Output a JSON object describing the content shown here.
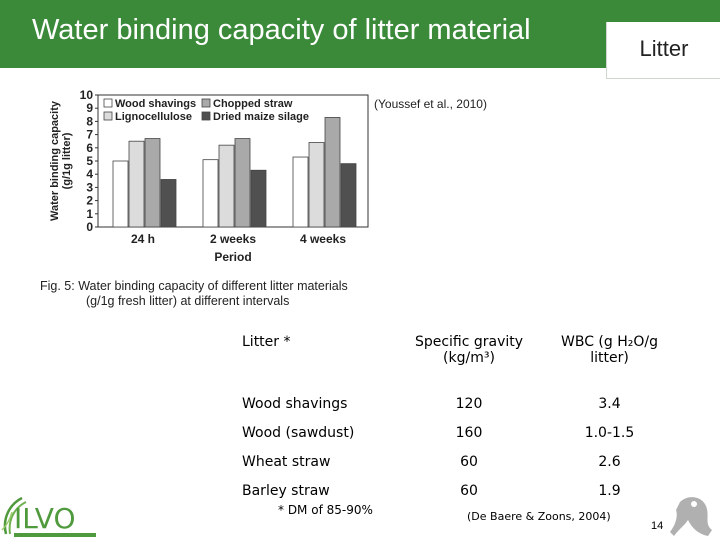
{
  "header": {
    "title": "Water binding capacity of litter material",
    "tag": "Litter"
  },
  "source_note": "(Youssef et al., 2010)",
  "figure_caption": {
    "line1": "Fig. 5: Water binding capacity of different litter materials",
    "line2": "(g/1g fresh litter) at different intervals"
  },
  "chart_data": {
    "type": "bar",
    "categories": [
      "24 h",
      "2 weeks",
      "4 weeks"
    ],
    "series": [
      {
        "name": "Wood shavings",
        "values": [
          5.0,
          5.1,
          5.3
        ]
      },
      {
        "name": "Lignocellulose",
        "values": [
          6.5,
          6.2,
          6.4
        ]
      },
      {
        "name": "Chopped straw",
        "values": [
          6.7,
          6.7,
          8.3
        ]
      },
      {
        "name": "Dried maize silage",
        "values": [
          3.6,
          4.3,
          4.8
        ]
      }
    ],
    "ylabel": "Water binding capacity (g/1g litter)",
    "xlabel": "Period",
    "ylim": [
      0,
      10
    ],
    "yticks": [
      "0",
      "1",
      "2",
      "3",
      "4",
      "5",
      "6",
      "7",
      "8",
      "9",
      "10"
    ],
    "legend": "top",
    "colors": [
      "#ffffff",
      "#dcdcdc",
      "#a9a9a9",
      "#505050"
    ]
  },
  "table": {
    "headers": [
      "Litter *",
      "Specific gravity (kg/m³)",
      "WBC (g H₂O/g litter)"
    ],
    "rows": [
      [
        "Wood shavings",
        "120",
        "3.4"
      ],
      [
        "Wood (sawdust)",
        "160",
        "1.0-1.5"
      ],
      [
        "Wheat straw",
        "60",
        "2.6"
      ],
      [
        "Barley straw",
        "60",
        "1.9"
      ]
    ]
  },
  "footnote": "* DM of 85-90%",
  "reference": "(De Baere & Zoons, 2004)",
  "page_number": "14",
  "logo": {
    "name": "ILVO"
  }
}
